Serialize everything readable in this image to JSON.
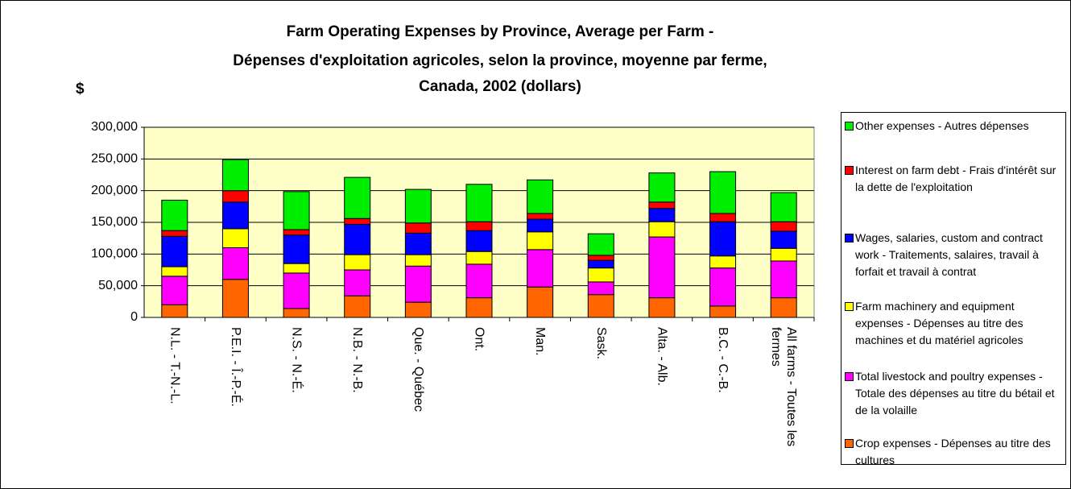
{
  "chart_data": {
    "type": "stacked_bar",
    "title": [
      "Farm Operating Expenses by Province, Average per Farm -",
      "Dépenses d'exploitation agricoles, selon la province, moyenne par ferme,",
      "Canada, 2002 (dollars)"
    ],
    "ylabel": "$",
    "categories": [
      "N.L. - T.-N.-L.",
      "P.E.I. - Î.-P.-É.",
      "N.S. - N.-É.",
      "N.B. - N.-B.",
      "Que. - Québec",
      "Ont.",
      "Man.",
      "Sask.",
      "Alta. - Alb.",
      "B.C. - C.-B.",
      "All farms - Toutes les fermes"
    ],
    "series": [
      {
        "name": "Crop expenses - Dépenses au titre des cultures",
        "color": "#ff6600",
        "values": [
          20000,
          60000,
          14000,
          34000,
          24000,
          31000,
          48000,
          36000,
          31000,
          18000,
          31000
        ]
      },
      {
        "name": "Total livestock and poultry expenses - Totale des dépenses au titre du bétail et de la volaille",
        "color": "#ff00ff",
        "values": [
          45000,
          50000,
          56000,
          41000,
          57000,
          53000,
          59000,
          20000,
          96000,
          60000,
          58000
        ]
      },
      {
        "name": "Farm machinery and equipment expenses - Dépenses au titre des machines et du matériel agricoles",
        "color": "#ffff00",
        "values": [
          15000,
          30000,
          15000,
          24000,
          18000,
          20000,
          28000,
          22000,
          24000,
          19000,
          20000
        ]
      },
      {
        "name": "Wages, salaries, custom and contract work - Traitements, salaires, travail à forfait et travail à contrat",
        "color": "#0000ff",
        "values": [
          48000,
          42000,
          45000,
          48000,
          34000,
          33000,
          20000,
          12000,
          21000,
          54000,
          27000
        ]
      },
      {
        "name": "Interest on farm debt - Frais d'intérêt sur la dette de l'exploitation",
        "color": "#ff0000",
        "values": [
          9000,
          18000,
          8500,
          9000,
          16000,
          14000,
          9000,
          8000,
          10000,
          13000,
          15000
        ]
      },
      {
        "name": "Other expenses - Autres dépenses",
        "color": "#00ee00",
        "values": [
          48000,
          49000,
          60000,
          65000,
          53000,
          59000,
          53000,
          34000,
          46000,
          66000,
          46000
        ]
      }
    ],
    "ylim": [
      0,
      300000
    ],
    "yticks": [
      0,
      {
        "value": 50000,
        "label": "50,000"
      },
      {
        "value": 100000,
        "label": "100,000"
      },
      {
        "value": 150000,
        "label": "150,000"
      },
      {
        "value": 200000,
        "label": "200,000"
      },
      {
        "value": 250000,
        "label": "250,000"
      },
      {
        "value": 300000,
        "label": "300,000"
      }
    ],
    "grid": true,
    "plot_background": "#ffffc8",
    "legend": "right"
  }
}
